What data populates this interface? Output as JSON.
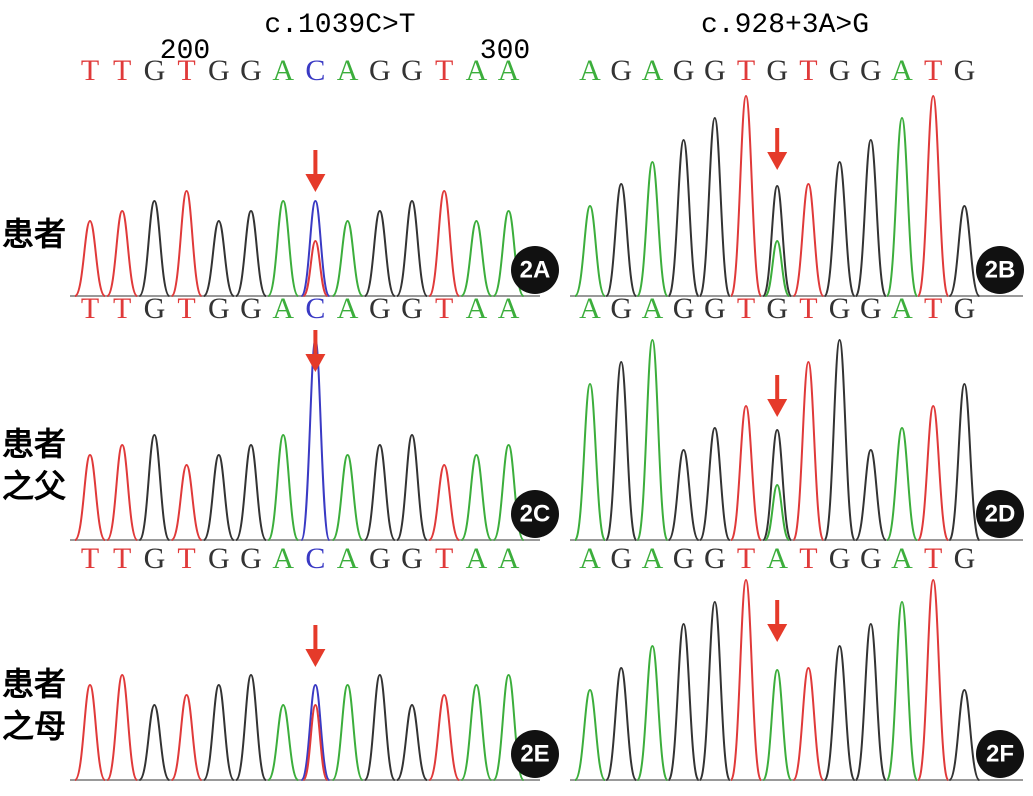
{
  "headers": [
    "c.1039C>T",
    "c.928+3A>G"
  ],
  "position_labels": [
    "200",
    "300"
  ],
  "rows": [
    {
      "label": [
        "患者"
      ],
      "left": {
        "bases": [
          "T",
          "T",
          "G",
          "T",
          "G",
          "G",
          "A",
          "C",
          "A",
          "G",
          "G",
          "T",
          "A",
          "A"
        ],
        "panel": "2A"
      },
      "right": {
        "bases": [
          "A",
          "G",
          "A",
          "G",
          "G",
          "T",
          "G",
          "T",
          "G",
          "G",
          "A",
          "T",
          "G"
        ],
        "panel": "2B"
      }
    },
    {
      "label": [
        "患者",
        "之父"
      ],
      "left": {
        "bases": [
          "T",
          "T",
          "G",
          "T",
          "G",
          "G",
          "A",
          "C",
          "A",
          "G",
          "G",
          "T",
          "A",
          "A"
        ],
        "panel": "2C"
      },
      "right": {
        "bases": [
          "A",
          "G",
          "A",
          "G",
          "G",
          "T",
          "G",
          "T",
          "G",
          "G",
          "A",
          "T",
          "G"
        ],
        "panel": "2D"
      }
    },
    {
      "label": [
        "患者",
        "之母"
      ],
      "left": {
        "bases": [
          "T",
          "T",
          "G",
          "T",
          "G",
          "G",
          "A",
          "C",
          "A",
          "G",
          "G",
          "T",
          "A",
          "A"
        ],
        "panel": "2E"
      },
      "right": {
        "bases": [
          "A",
          "G",
          "A",
          "G",
          "G",
          "T",
          "A",
          "T",
          "G",
          "G",
          "A",
          "T",
          "G"
        ],
        "panel": "2F"
      }
    }
  ]
}
